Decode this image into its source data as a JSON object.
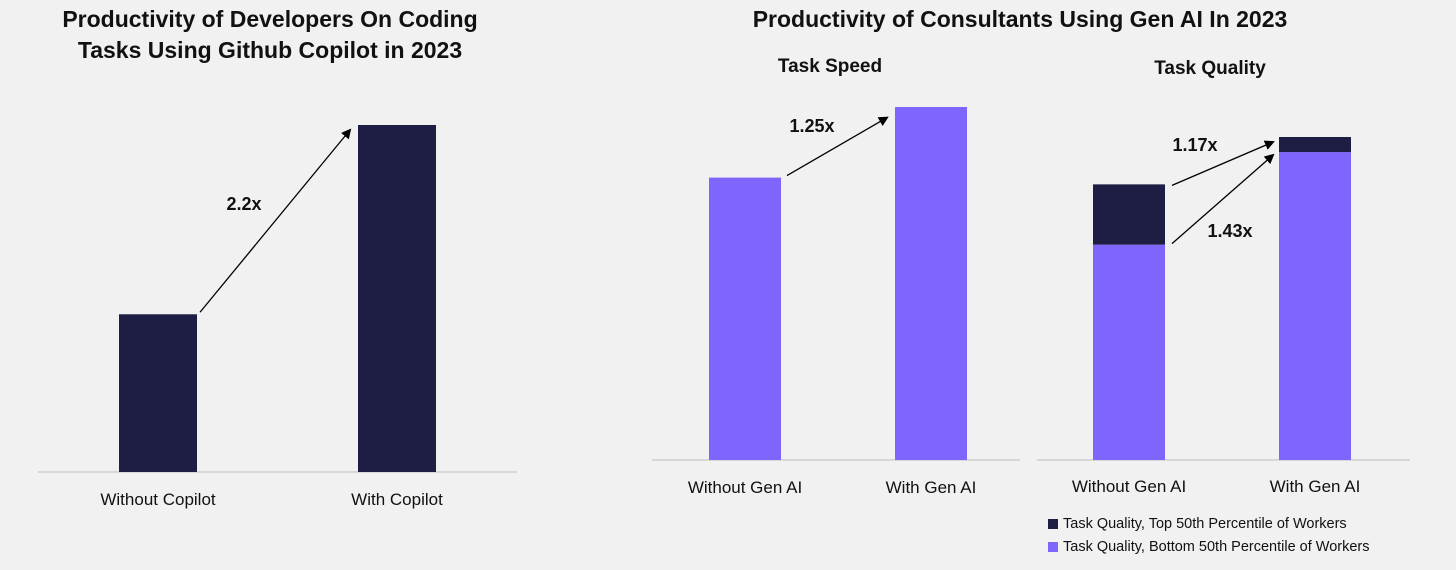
{
  "colors": {
    "navy": "#1e1e44",
    "purple": "#8065fc",
    "axis": "#bdbdbd"
  },
  "chart_data": [
    {
      "type": "bar",
      "title": "Productivity of Developers On Coding Tasks Using Github Copilot in 2023",
      "title_lines": [
        "Productivity of Developers On Coding",
        "Tasks Using Github Copilot in 2023"
      ],
      "categories": [
        "Without Copilot",
        "With Copilot"
      ],
      "values": [
        1,
        2.2
      ],
      "annotations": [
        {
          "label": "2.2x",
          "from": "Without Copilot",
          "to": "With Copilot"
        }
      ],
      "ylim": [
        0,
        2.2
      ]
    },
    {
      "type": "bar",
      "suptitle": "Productivity of Consultants Using Gen AI In 2023",
      "title": "Task Speed",
      "categories": [
        "Without Gen AI",
        "With Gen AI"
      ],
      "values": [
        1,
        1.25
      ],
      "annotations": [
        {
          "label": "1.25x",
          "from": "Without Gen AI",
          "to": "With Gen AI"
        }
      ],
      "ylim": [
        0,
        1.25
      ]
    },
    {
      "type": "bar",
      "stacked": true,
      "title": "Task Quality",
      "categories": [
        "Without Gen AI",
        "With Gen AI"
      ],
      "series": [
        {
          "name": "Task Quality, Bottom 50th Percentile of Workers",
          "values": [
            1,
            1.43
          ]
        },
        {
          "name": "Task Quality, Top 50th Percentile of Workers",
          "values": [
            0.28,
            0.07
          ]
        }
      ],
      "annotations": [
        {
          "label": "1.17x",
          "series": "Task Quality, Top 50th Percentile of Workers"
        },
        {
          "label": "1.43x",
          "series": "Task Quality, Bottom 50th Percentile of Workers"
        }
      ],
      "legend": {
        "position": "bottom-right",
        "entries": [
          "Task Quality, Top 50th Percentile of Workers",
          "Task Quality, Bottom 50th Percentile of Workers"
        ]
      },
      "ylim": [
        0,
        1.5
      ]
    }
  ]
}
